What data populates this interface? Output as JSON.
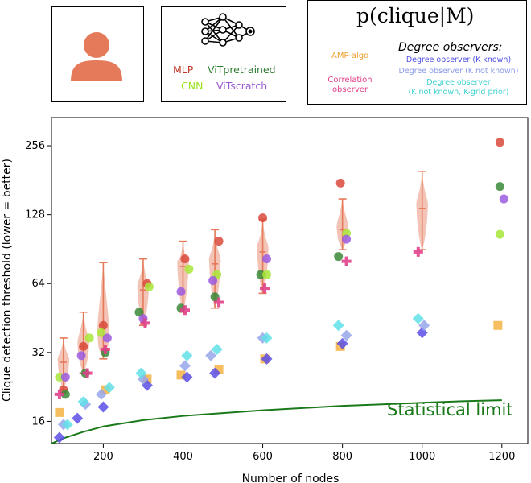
{
  "legend": {
    "models": [
      {
        "label": "MLP",
        "color": "#c0392b"
      },
      {
        "label": "ViTpretrained",
        "color": "#2e7d32"
      },
      {
        "label": "CNN",
        "color": "#9be31d"
      },
      {
        "label": "ViTscratch",
        "color": "#9b59d0"
      }
    ],
    "observer_title": "p(clique|M)",
    "degree_title": "Degree observers:",
    "amp": {
      "label": "AMP-algo",
      "color": "#f0a030"
    },
    "correlation": {
      "label": "Correlation observer",
      "line1": "Correlation",
      "line2": "observer",
      "color": "#e0408a"
    },
    "degree_known": {
      "label": "Degree observer (K known)",
      "color": "#5050e0"
    },
    "degree_not_known": {
      "label": "Degree observer (K not known)",
      "color": "#8a9ae8"
    },
    "degree_grid": {
      "label": "Degree observer (K not known, K-grid prior)",
      "line1": "Degree observer",
      "line2": "(K not known, K-grid prior)",
      "color": "#40d0d0"
    }
  },
  "annotation": {
    "text": "Statistical limit",
    "color": "#1a7a1a"
  },
  "chart_data": {
    "type": "scatter",
    "xlabel": "Number of nodes",
    "ylabel": "Clique detection threshold (lower = better)",
    "xlim": [
      70,
      1265
    ],
    "ylim": [
      12.8,
      340
    ],
    "log_y": true,
    "x_ticks": [
      200,
      400,
      600,
      800,
      1000,
      1200
    ],
    "y_ticks": [
      16,
      32,
      64,
      128,
      256
    ],
    "human": {
      "name": "Human",
      "color": "#e57a5a",
      "points": [
        {
          "x": 100,
          "median": 29,
          "low": 22,
          "high": 37
        },
        {
          "x": 150,
          "median": 34,
          "low": 26,
          "high": 48
        },
        {
          "x": 200,
          "median": 38,
          "low": 30,
          "high": 79
        },
        {
          "x": 300,
          "median": 60,
          "low": 42,
          "high": 82
        },
        {
          "x": 400,
          "median": 76,
          "low": 48,
          "high": 98
        },
        {
          "x": 480,
          "median": 78,
          "low": 50,
          "high": 110
        },
        {
          "x": 600,
          "median": 88,
          "low": 58,
          "high": 122
        },
        {
          "x": 800,
          "median": 110,
          "low": 90,
          "high": 150
        },
        {
          "x": 1000,
          "median": 136,
          "low": 90,
          "high": 198
        }
      ]
    },
    "series": [
      {
        "name": "MLP",
        "marker": "circle",
        "color": "#d94a3c",
        "points": [
          [
            100,
            22
          ],
          [
            150,
            34
          ],
          [
            200,
            42
          ],
          [
            310,
            64
          ],
          [
            405,
            82
          ],
          [
            490,
            98
          ],
          [
            600,
            124
          ],
          [
            795,
            176
          ],
          [
            1195,
            265
          ]
        ]
      },
      {
        "name": "ViTpretrained",
        "marker": "circle",
        "color": "#3a8a3a",
        "points": [
          [
            105,
            21
          ],
          [
            155,
            26
          ],
          [
            205,
            32
          ],
          [
            290,
            48
          ],
          [
            395,
            50
          ],
          [
            480,
            56
          ],
          [
            595,
            70
          ],
          [
            790,
            84
          ],
          [
            1195,
            170
          ]
        ]
      },
      {
        "name": "CNN",
        "marker": "circle",
        "color": "#a8e63a",
        "points": [
          [
            90,
            25
          ],
          [
            165,
            37
          ],
          [
            195,
            39
          ],
          [
            315,
            62
          ],
          [
            415,
            74
          ],
          [
            485,
            70
          ],
          [
            610,
            70
          ],
          [
            810,
            106
          ],
          [
            1195,
            105
          ]
        ]
      },
      {
        "name": "ViTscratch",
        "marker": "circle",
        "color": "#9b5ce0",
        "points": [
          [
            105,
            25
          ],
          [
            145,
            31
          ],
          [
            210,
            37
          ],
          [
            300,
            45
          ],
          [
            395,
            59
          ],
          [
            475,
            66
          ],
          [
            610,
            82
          ],
          [
            810,
            100
          ],
          [
            1205,
            150
          ]
        ]
      },
      {
        "name": "Correlation observer",
        "marker": "plus",
        "color": "#e0408a",
        "points": [
          [
            90,
            21
          ],
          [
            160,
            26
          ],
          [
            205,
            33
          ],
          [
            305,
            43
          ],
          [
            405,
            49
          ],
          [
            490,
            53
          ],
          [
            605,
            61
          ],
          [
            810,
            80
          ],
          [
            990,
            88
          ]
        ]
      },
      {
        "name": "AMP-algo",
        "marker": "square",
        "color": "#f5b342",
        "points": [
          [
            90,
            17.5
          ],
          [
            205,
            22
          ],
          [
            310,
            24.5
          ],
          [
            395,
            25.5
          ],
          [
            490,
            27
          ],
          [
            605,
            30
          ],
          [
            795,
            34
          ],
          [
            1190,
            42
          ]
        ]
      },
      {
        "name": "Degree observer (K known)",
        "marker": "diamond",
        "color": "#5a4fe6",
        "points": [
          [
            90,
            13.6
          ],
          [
            135,
            16.5
          ],
          [
            200,
            18.5
          ],
          [
            310,
            23
          ],
          [
            410,
            25
          ],
          [
            480,
            26
          ],
          [
            610,
            30
          ],
          [
            800,
            35
          ],
          [
            1000,
            39
          ]
        ]
      },
      {
        "name": "Degree observer (K not known)",
        "marker": "diamond",
        "color": "#98a6ea",
        "points": [
          [
            100,
            15.5
          ],
          [
            155,
            19
          ],
          [
            195,
            21
          ],
          [
            300,
            24.5
          ],
          [
            405,
            28
          ],
          [
            470,
            31
          ],
          [
            600,
            37
          ],
          [
            810,
            38
          ],
          [
            1005,
            42
          ]
        ]
      },
      {
        "name": "Degree observer (K not known, K-grid prior)",
        "marker": "diamond",
        "color": "#5fe0e6",
        "points": [
          [
            110,
            15.5
          ],
          [
            150,
            19.5
          ],
          [
            215,
            22.5
          ],
          [
            295,
            26
          ],
          [
            410,
            31
          ],
          [
            485,
            33
          ],
          [
            610,
            37
          ],
          [
            790,
            42
          ],
          [
            990,
            45
          ]
        ]
      }
    ],
    "statistical_limit": {
      "name": "Statistical limit",
      "color": "#1a7a1a",
      "points": [
        [
          70,
          12.8
        ],
        [
          100,
          13.5
        ],
        [
          150,
          14.4
        ],
        [
          200,
          15.2
        ],
        [
          300,
          16.2
        ],
        [
          400,
          16.9
        ],
        [
          500,
          17.4
        ],
        [
          600,
          17.9
        ],
        [
          700,
          18.3
        ],
        [
          800,
          18.7
        ],
        [
          900,
          19.0
        ],
        [
          1000,
          19.3
        ],
        [
          1100,
          19.6
        ],
        [
          1200,
          19.8
        ]
      ]
    }
  }
}
